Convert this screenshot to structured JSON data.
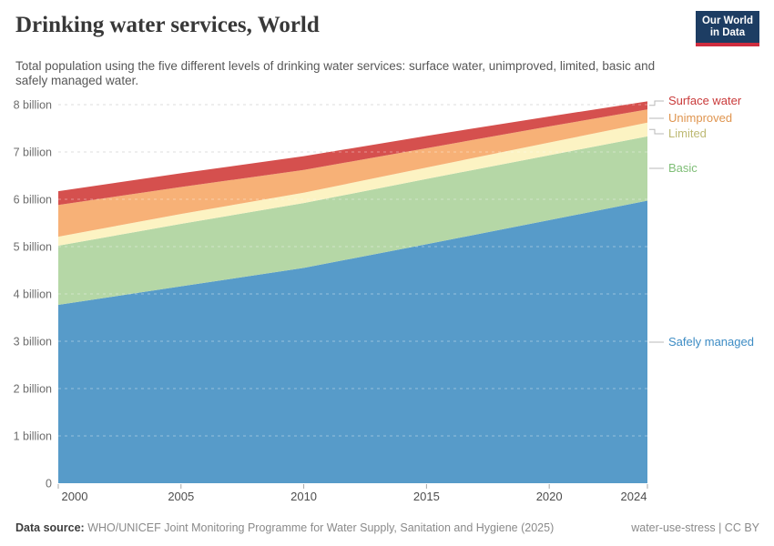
{
  "header": {
    "title": "Drinking water services, World",
    "subtitle": "Total population using the five different levels of drinking water services: surface water, unimproved, limited, basic and safely managed water.",
    "logo": {
      "line1": "Our World",
      "line2": "in Data",
      "bg": "#1d3d63",
      "stripe": "#cf2d3f"
    }
  },
  "chart_data": {
    "type": "area",
    "stacked": true,
    "title": "Drinking water services, World",
    "unit": "people",
    "x": [
      2000,
      2005,
      2010,
      2015,
      2020,
      2024
    ],
    "x_tick_labels": [
      "2000",
      "2005",
      "2010",
      "2015",
      "2020",
      "2024"
    ],
    "y_ticks": [
      0,
      1,
      2,
      3,
      4,
      5,
      6,
      7,
      8
    ],
    "y_tick_labels": [
      "0",
      "1 billion",
      "2 billion",
      "3 billion",
      "4 billion",
      "5 billion",
      "6 billion",
      "7 billion",
      "8 billion"
    ],
    "ylim": [
      0,
      8
    ],
    "grid": "horizontal-dashed",
    "legend_position": "right",
    "series": [
      {
        "name": "Safely managed",
        "color": "#579bc9",
        "label_color": "#3d8cc4",
        "values_billions": [
          3.77,
          4.16,
          4.55,
          5.05,
          5.56,
          5.97
        ]
      },
      {
        "name": "Basic",
        "color": "#b5d7a6",
        "label_color": "#7fbe77",
        "values_billions": [
          1.25,
          1.32,
          1.37,
          1.38,
          1.37,
          1.36
        ]
      },
      {
        "name": "Limited",
        "color": "#fcf3c3",
        "label_color": "#bdb973",
        "values_billions": [
          0.19,
          0.21,
          0.22,
          0.24,
          0.27,
          0.29
        ]
      },
      {
        "name": "Unimproved",
        "color": "#f7b177",
        "label_color": "#df944e",
        "values_billions": [
          0.67,
          0.57,
          0.48,
          0.41,
          0.34,
          0.28
        ]
      },
      {
        "name": "Surface water",
        "color": "#d5504e",
        "label_color": "#c93a3a",
        "values_billions": [
          0.29,
          0.29,
          0.29,
          0.26,
          0.21,
          0.17
        ]
      }
    ],
    "totals_billions": [
      6.17,
      6.55,
      6.91,
      7.34,
      7.75,
      8.07
    ]
  },
  "footer": {
    "datasource_label": "Data source:",
    "datasource_text": "WHO/UNICEF Joint Monitoring Programme for Water Supply, Sanitation and Hygiene (2025)",
    "note": "water-use-stress | CC BY"
  }
}
